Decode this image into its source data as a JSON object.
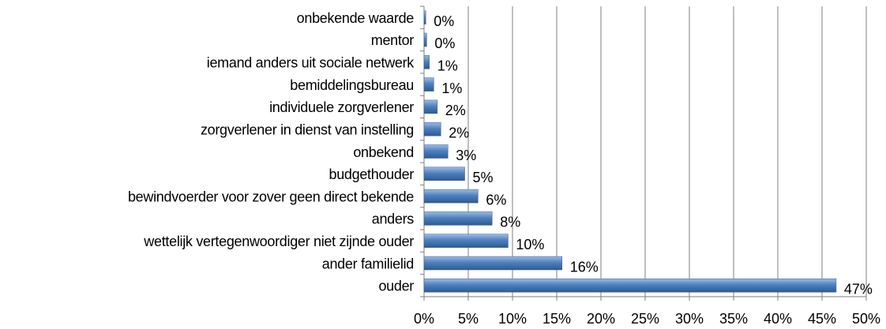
{
  "chart_data": {
    "type": "hbar",
    "categories": [
      "onbekende waarde",
      "mentor",
      "iemand anders uit sociale netwerk",
      "bemiddelingsbureau",
      "individuele zorgverlener",
      "zorgverlener in dienst van instelling",
      "onbekend",
      "budgethouder",
      "bewindvoerder voor zover geen direct bekende",
      "anders",
      "wettelijk vertegenwoordiger niet zijnde ouder",
      "ander familielid",
      "ouder"
    ],
    "values": [
      0.2,
      0.3,
      0.6,
      1.1,
      1.5,
      1.9,
      2.7,
      4.6,
      6.1,
      7.7,
      9.5,
      15.6,
      46.6
    ],
    "value_labels": [
      "0%",
      "0%",
      "1%",
      "1%",
      "2%",
      "2%",
      "3%",
      "5%",
      "6%",
      "8%",
      "10%",
      "16%",
      "47%"
    ],
    "color": "#4f81bd",
    "xlim": [
      0,
      50
    ],
    "xticks": [
      {
        "value": 0,
        "label": "0%"
      },
      {
        "value": 5,
        "label": "5%"
      },
      {
        "value": 10,
        "label": "10%"
      },
      {
        "value": 15,
        "label": "15%"
      },
      {
        "value": 20,
        "label": "20%"
      },
      {
        "value": 25,
        "label": "25%"
      },
      {
        "value": 30,
        "label": "30%"
      },
      {
        "value": 35,
        "label": "35%"
      },
      {
        "value": 40,
        "label": "40%"
      },
      {
        "value": 45,
        "label": "45%"
      },
      {
        "value": 50,
        "label": "50%"
      }
    ],
    "grid": true
  }
}
